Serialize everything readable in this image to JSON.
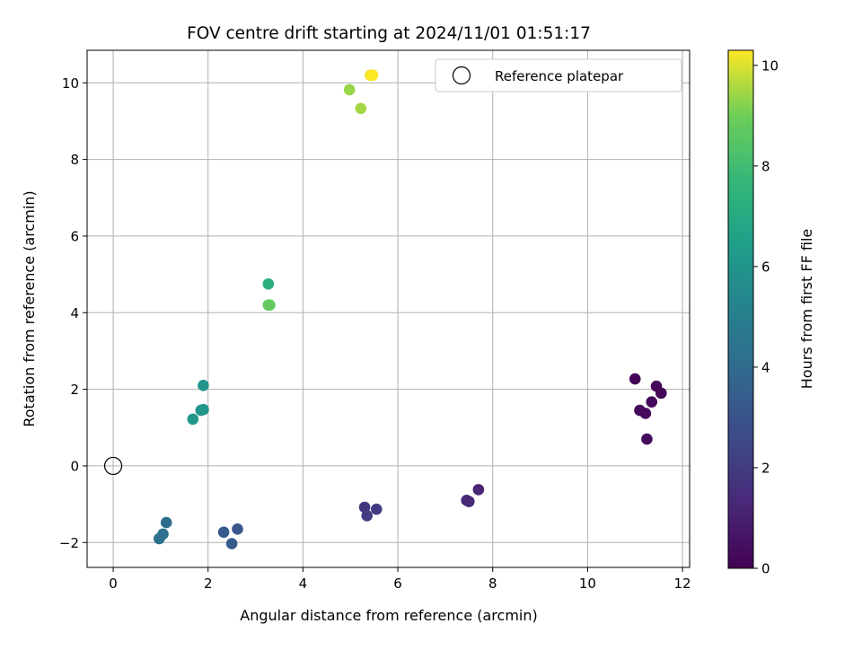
{
  "chart_data": {
    "type": "scatter",
    "title": "FOV centre drift starting at 2024/11/01 01:51:17",
    "xlabel": "Angular distance from reference (arcmin)",
    "ylabel": "Rotation from reference (arcmin)",
    "xlim": [
      -0.55,
      12.15
    ],
    "ylim": [
      -2.65,
      10.85
    ],
    "xticks": [
      0,
      2,
      4,
      6,
      8,
      10,
      12
    ],
    "yticks": [
      -2,
      0,
      2,
      4,
      6,
      8,
      10
    ],
    "grid": true,
    "legend": {
      "placement": "top-right",
      "entries": [
        "Reference platepar"
      ]
    },
    "reference_point": {
      "x": 0,
      "y": 0
    },
    "colorbar": {
      "label": "Hours from first FF file",
      "range": [
        0,
        10.3
      ],
      "ticks": [
        0,
        2,
        4,
        6,
        8,
        10
      ],
      "colormap": "viridis"
    },
    "series": [
      {
        "points": [
          {
            "x": 11.0,
            "y": 2.27,
            "c": 0.05
          },
          {
            "x": 11.45,
            "y": 2.08,
            "c": 0.1
          },
          {
            "x": 11.55,
            "y": 1.9,
            "c": 0.15
          },
          {
            "x": 11.35,
            "y": 1.67,
            "c": 0.2
          },
          {
            "x": 11.1,
            "y": 1.45,
            "c": 0.25
          },
          {
            "x": 11.22,
            "y": 1.37,
            "c": 0.3
          },
          {
            "x": 11.25,
            "y": 0.7,
            "c": 0.35
          },
          {
            "x": 7.7,
            "y": -0.62,
            "c": 1.2
          },
          {
            "x": 7.45,
            "y": -0.9,
            "c": 1.3
          },
          {
            "x": 7.5,
            "y": -0.93,
            "c": 1.35
          },
          {
            "x": 5.3,
            "y": -1.08,
            "c": 1.9
          },
          {
            "x": 5.55,
            "y": -1.13,
            "c": 2.0
          },
          {
            "x": 5.35,
            "y": -1.3,
            "c": 2.05
          },
          {
            "x": 2.62,
            "y": -1.65,
            "c": 3.2
          },
          {
            "x": 2.33,
            "y": -1.73,
            "c": 3.3
          },
          {
            "x": 2.5,
            "y": -2.03,
            "c": 3.35
          },
          {
            "x": 1.12,
            "y": -1.48,
            "c": 4.1
          },
          {
            "x": 1.05,
            "y": -1.78,
            "c": 4.2
          },
          {
            "x": 0.97,
            "y": -1.9,
            "c": 4.25
          },
          {
            "x": 1.9,
            "y": 2.1,
            "c": 5.9
          },
          {
            "x": 1.9,
            "y": 1.47,
            "c": 6.0
          },
          {
            "x": 1.85,
            "y": 1.45,
            "c": 6.05
          },
          {
            "x": 1.68,
            "y": 1.22,
            "c": 6.1
          },
          {
            "x": 3.27,
            "y": 4.75,
            "c": 7.3
          },
          {
            "x": 3.27,
            "y": 4.2,
            "c": 8.7
          },
          {
            "x": 3.3,
            "y": 4.2,
            "c": 8.8
          },
          {
            "x": 4.98,
            "y": 9.82,
            "c": 9.4
          },
          {
            "x": 5.22,
            "y": 9.33,
            "c": 9.5
          },
          {
            "x": 5.42,
            "y": 10.2,
            "c": 10.2
          },
          {
            "x": 5.47,
            "y": 10.2,
            "c": 10.3
          }
        ]
      }
    ]
  }
}
